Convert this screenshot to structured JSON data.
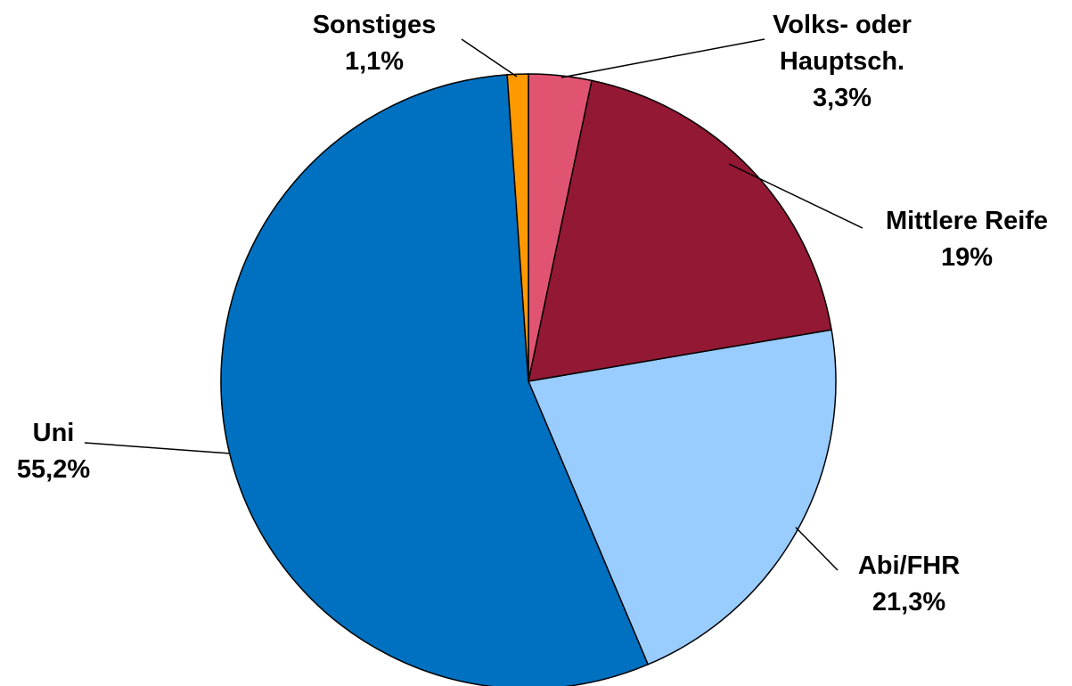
{
  "chart_data": {
    "type": "pie",
    "categories": [
      "Volks- oder Hauptsch.",
      "Mittlere Reife",
      "Abi/FHR",
      "Uni",
      "Sonstiges"
    ],
    "values": [
      3.3,
      19,
      21.3,
      55.2,
      1.1
    ],
    "value_labels": [
      "3,3%",
      "19%",
      "21,3%",
      "55,2%",
      "1,1%"
    ],
    "colors": [
      "#e05472",
      "#931834",
      "#99ccff",
      "#0070c0",
      "#ff9900"
    ]
  }
}
